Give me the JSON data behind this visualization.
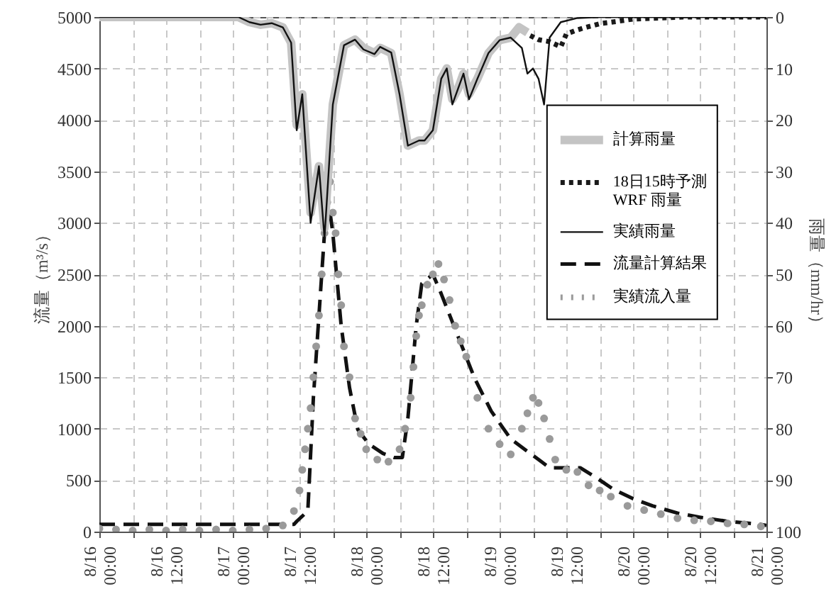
{
  "chart_data": {
    "type": "line",
    "ylabel": "流量（m³/s）",
    "y2label": "雨量（mm/hr）",
    "xlim": [
      "--08-16T00:00",
      "--08-21T00:00"
    ],
    "xticks": [
      {
        "value": "--08-16T00:00",
        "label": "8/16 00:00"
      },
      {
        "value": "--08-16T06:00",
        "label": null
      },
      {
        "value": "--08-16T12:00",
        "label": "8/16 12:00"
      },
      {
        "value": "--08-16T18:00",
        "label": null
      },
      {
        "value": "--08-17T00:00",
        "label": "8/17 00:00"
      },
      {
        "value": "--08-17T06:00",
        "label": null
      },
      {
        "value": "--08-17T12:00",
        "label": "8/17 12:00"
      },
      {
        "value": "--08-17T18:00",
        "label": null
      },
      {
        "value": "--08-18T00:00",
        "label": "8/18 00:00"
      },
      {
        "value": "--08-18T06:00",
        "label": null
      },
      {
        "value": "--08-18T12:00",
        "label": "8/18 12:00"
      },
      {
        "value": "--08-18T18:00",
        "label": null
      },
      {
        "value": "--08-19T00:00",
        "label": "8/19 00:00"
      },
      {
        "value": "--08-19T06:00",
        "label": null
      },
      {
        "value": "--08-19T12:00",
        "label": "8/19 12:00"
      },
      {
        "value": "--08-19T18:00",
        "label": null
      },
      {
        "value": "--08-20T00:00",
        "label": "8/20 00:00"
      },
      {
        "value": "--08-20T06:00",
        "label": null
      },
      {
        "value": "--08-20T12:00",
        "label": "8/20 12:00"
      },
      {
        "value": "--08-20T18:00",
        "label": null
      },
      {
        "value": "--08-21T00:00",
        "label": "8/21 00:00"
      }
    ],
    "ylim": [
      0,
      5000
    ],
    "yticks": [
      0,
      500,
      1000,
      1500,
      2000,
      2500,
      3000,
      3500,
      4000,
      4500,
      5000
    ],
    "y2lim": [
      100,
      0
    ],
    "y2ticks": [
      0,
      10,
      20,
      30,
      40,
      50,
      60,
      70,
      80,
      90,
      100
    ],
    "grid": true,
    "legend": "top right",
    "series": [
      {
        "name": "計算雨量",
        "axis": "y2",
        "line_style": "solid",
        "color": "#c4c4c4",
        "x": [
          "--08-16T00:00",
          "--08-17T01:00",
          "--08-17T03:00",
          "--08-17T05:00",
          "--08-17T07:00",
          "--08-17T09:00",
          "--08-17T10:30",
          "--08-17T11:30",
          "--08-17T12:30",
          "--08-17T14:00",
          "--08-17T15:30",
          "--08-17T16:30",
          "--08-17T18:00",
          "--08-17T20:00",
          "--08-17T22:00",
          "--08-17T23:30",
          "--08-18T01:30",
          "--08-18T02:30",
          "--08-18T04:30",
          "--08-18T06:00",
          "--08-18T07:30",
          "--08-18T09:30",
          "--08-18T10:30",
          "--08-18T12:00",
          "--08-18T13:30",
          "--08-18T14:30",
          "--08-18T15:30",
          "--08-18T16:30",
          "--08-18T17:30",
          "--08-18T18:30",
          "--08-18T20:00",
          "--08-18T22:00",
          "--08-19T00:00",
          "--08-19T02:00",
          "--08-19T03:30",
          "--08-19T05:00"
        ],
        "values": [
          0,
          0,
          1,
          1.5,
          1.2,
          2,
          5,
          21,
          15,
          38,
          29,
          41,
          17,
          5.5,
          4.4,
          6,
          7,
          6,
          7,
          15,
          25,
          24,
          24,
          22,
          12,
          10,
          16,
          14,
          11,
          15,
          12,
          7,
          4.5,
          4,
          2,
          3
        ]
      },
      {
        "name": "18日15時予測\nWRF 雨量",
        "axis": "y2",
        "line_style": "dotted",
        "color": "#1a1a1a",
        "x": [
          "--08-19T05:30",
          "--08-19T07:00",
          "--08-19T09:00",
          "--08-19T11:00",
          "--08-19T12:00",
          "--08-19T14:00",
          "--08-19T15:30",
          "--08-19T18:00",
          "--08-19T21:30",
          "--08-20T00:00",
          "--08-20T05:00",
          "--08-20T09:00",
          "--08-21T00:00"
        ],
        "values": [
          3.6,
          4.4,
          4.8,
          5.8,
          3.3,
          2.5,
          2,
          1.3,
          0.8,
          0.4,
          0.2,
          0,
          0
        ]
      },
      {
        "name": "実績雨量",
        "axis": "y2",
        "line_style": "solid",
        "color": "#111111",
        "x": [
          "--08-16T00:00",
          "--08-17T01:00",
          "--08-17T03:00",
          "--08-17T05:00",
          "--08-17T07:00",
          "--08-17T09:00",
          "--08-17T10:30",
          "--08-17T11:30",
          "--08-17T12:30",
          "--08-17T14:00",
          "--08-17T15:30",
          "--08-17T16:30",
          "--08-17T18:00",
          "--08-17T20:00",
          "--08-17T22:00",
          "--08-17T23:30",
          "--08-18T01:30",
          "--08-18T02:30",
          "--08-18T04:30",
          "--08-18T06:00",
          "--08-18T07:30",
          "--08-18T09:30",
          "--08-18T10:30",
          "--08-18T12:00",
          "--08-18T13:30",
          "--08-18T14:30",
          "--08-18T15:30",
          "--08-18T16:30",
          "--08-18T17:30",
          "--08-18T18:30",
          "--08-18T20:00",
          "--08-18T22:00",
          "--08-19T00:00",
          "--08-19T02:00",
          "--08-19T04:00",
          "--08-19T05:00",
          "--08-19T06:00",
          "--08-19T07:00",
          "--08-19T08:00",
          "--08-19T09:00",
          "--08-19T11:00",
          "--08-19T14:00",
          "--08-19T18:00",
          "--08-21T00:00"
        ],
        "values": [
          0,
          0,
          1,
          1.5,
          1.2,
          2,
          5,
          22,
          15,
          40,
          29,
          43,
          17,
          5.5,
          4.4,
          6.3,
          7.2,
          5.8,
          6.9,
          15,
          25,
          24,
          24,
          22,
          12,
          10,
          17,
          14,
          11,
          16,
          12,
          7,
          4.5,
          4,
          6,
          11,
          10,
          12,
          17,
          4,
          1,
          0.2,
          0,
          0
        ]
      },
      {
        "name": "流量計算結果",
        "line_style": "dashed",
        "color": "#111111",
        "x": [
          "--08-16T00:00",
          "--08-17T11:00",
          "--08-17T11:30",
          "--08-17T13:30",
          "--08-17T14:30",
          "--08-17T16:00",
          "--08-17T17:00",
          "--08-17T18:00",
          "--08-17T19:30",
          "--08-17T21:00",
          "--08-17T22:30",
          "--08-18T00:30",
          "--08-18T03:00",
          "--08-18T05:00",
          "--08-18T06:30",
          "--08-18T07:30",
          "--08-18T09:00",
          "--08-18T10:00",
          "--08-18T12:00",
          "--08-18T13:30",
          "--08-18T16:30",
          "--08-18T19:30",
          "--08-18T22:30",
          "--08-19T02:00",
          "--08-19T05:30",
          "--08-19T09:00",
          "--08-19T11:30",
          "--08-19T14:30",
          "--08-19T17:30",
          "--08-19T20:30",
          "--08-20T00:00",
          "--08-20T03:30",
          "--08-20T08:00",
          "--08-20T12:00",
          "--08-20T17:00",
          "--08-20T23:00",
          "--08-21T00:00"
        ],
        "values": [
          70,
          70,
          100,
          200,
          1300,
          2500,
          3300,
          2900,
          2000,
          1400,
          990,
          850,
          760,
          720,
          720,
          1100,
          2000,
          2410,
          2500,
          2310,
          1900,
          1490,
          1170,
          900,
          760,
          620,
          620,
          620,
          520,
          410,
          320,
          250,
          180,
          140,
          100,
          70,
          60
        ]
      },
      {
        "name": "実績流入量",
        "type": "scatter",
        "marker": "circle",
        "color": "#9a9a9a",
        "x": [
          "--08-16T00:00",
          "--08-16T03:00",
          "--08-16T06:00",
          "--08-16T09:00",
          "--08-16T12:00",
          "--08-16T15:00",
          "--08-16T18:00",
          "--08-16T21:00",
          "--08-17T00:00",
          "--08-17T03:00",
          "--08-17T06:00",
          "--08-17T09:00",
          "--08-17T11:00",
          "--08-17T12:00",
          "--08-17T12:30",
          "--08-17T13:00",
          "--08-17T13:30",
          "--08-17T14:00",
          "--08-17T14:30",
          "--08-17T15:00",
          "--08-17T15:30",
          "--08-17T16:00",
          "--08-17T16:30",
          "--08-17T17:00",
          "--08-17T17:30",
          "--08-17T18:00",
          "--08-17T18:30",
          "--08-17T19:00",
          "--08-17T19:30",
          "--08-17T20:00",
          "--08-17T21:00",
          "--08-17T22:00",
          "--08-17T23:00",
          "--08-18T00:00",
          "--08-18T02:00",
          "--08-18T04:00",
          "--08-18T06:00",
          "--08-18T07:00",
          "--08-18T08:00",
          "--08-18T08:30",
          "--08-18T09:00",
          "--08-18T09:30",
          "--08-18T10:00",
          "--08-18T11:00",
          "--08-18T12:00",
          "--08-18T13:00",
          "--08-18T14:00",
          "--08-18T15:00",
          "--08-18T16:00",
          "--08-18T17:00",
          "--08-18T18:00",
          "--08-18T20:00",
          "--08-18T22:00",
          "--08-19T00:00",
          "--08-19T02:00",
          "--08-19T04:00",
          "--08-19T05:00",
          "--08-19T06:00",
          "--08-19T07:00",
          "--08-19T08:00",
          "--08-19T09:00",
          "--08-19T10:00",
          "--08-19T12:00",
          "--08-19T14:00",
          "--08-19T16:00",
          "--08-19T18:00",
          "--08-19T20:00",
          "--08-19T23:00",
          "--08-20T02:00",
          "--08-20T05:00",
          "--08-20T08:00",
          "--08-20T11:00",
          "--08-20T14:00",
          "--08-20T17:00",
          "--08-20T20:00",
          "--08-20T23:00"
        ],
        "values": [
          30,
          20,
          10,
          20,
          10,
          20,
          10,
          20,
          10,
          20,
          30,
          60,
          200,
          400,
          600,
          800,
          1000,
          1200,
          1500,
          1800,
          2100,
          2500,
          2900,
          3200,
          3400,
          3100,
          2900,
          2500,
          2200,
          1800,
          1500,
          1100,
          950,
          800,
          700,
          680,
          800,
          1000,
          1300,
          1600,
          1900,
          2100,
          2200,
          2400,
          2500,
          2600,
          2450,
          2250,
          2000,
          1850,
          1700,
          1300,
          1000,
          850,
          750,
          1000,
          1150,
          1300,
          1250,
          1100,
          900,
          700,
          600,
          580,
          450,
          400,
          340,
          250,
          210,
          170,
          130,
          110,
          100,
          80,
          70,
          50
        ]
      }
    ]
  }
}
